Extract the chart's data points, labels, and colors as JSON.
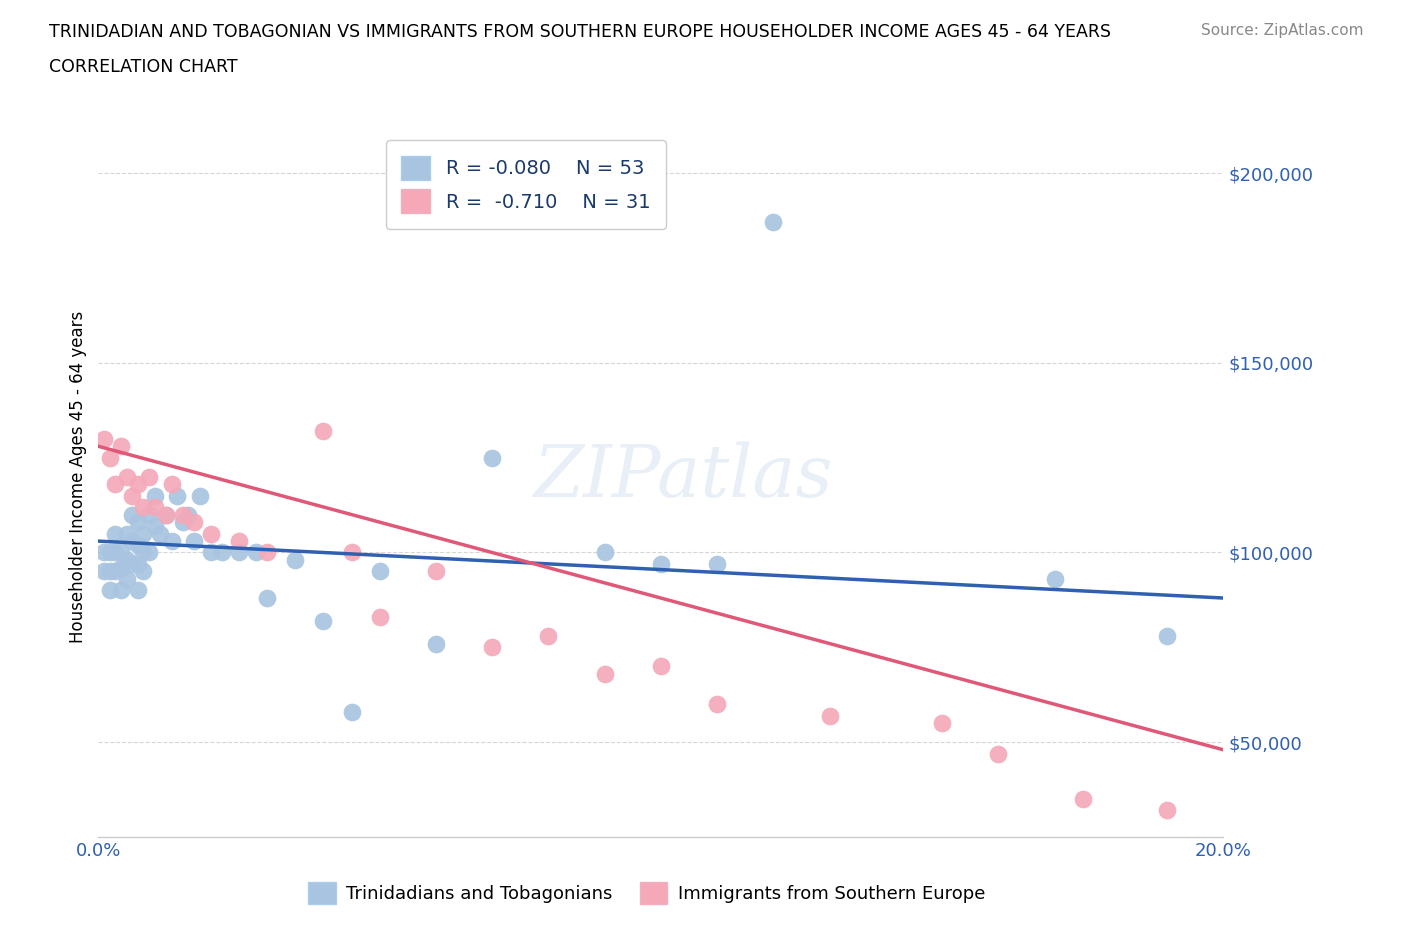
{
  "title_line1": "TRINIDADIAN AND TOBAGONIAN VS IMMIGRANTS FROM SOUTHERN EUROPE HOUSEHOLDER INCOME AGES 45 - 64 YEARS",
  "title_line2": "CORRELATION CHART",
  "source": "Source: ZipAtlas.com",
  "ylabel": "Householder Income Ages 45 - 64 years",
  "xlim": [
    0.0,
    0.2
  ],
  "ylim": [
    25000,
    215000
  ],
  "yticks": [
    50000,
    100000,
    150000,
    200000
  ],
  "ytick_labels": [
    "$50,000",
    "$100,000",
    "$150,000",
    "$200,000"
  ],
  "xticks": [
    0.0,
    0.025,
    0.05,
    0.075,
    0.1,
    0.125,
    0.15,
    0.175,
    0.2
  ],
  "xtick_labels": [
    "0.0%",
    "",
    "",
    "",
    "",
    "",
    "",
    "",
    "20.0%"
  ],
  "blue_R": -0.08,
  "blue_N": 53,
  "pink_R": -0.71,
  "pink_N": 31,
  "blue_color": "#a8c4e0",
  "pink_color": "#f4a8b8",
  "blue_line_color": "#3060b0",
  "pink_line_color": "#e05878",
  "legend_label_blue": "Trinidadians and Tobagonians",
  "legend_label_pink": "Immigrants from Southern Europe",
  "blue_x": [
    0.001,
    0.001,
    0.002,
    0.002,
    0.002,
    0.003,
    0.003,
    0.003,
    0.004,
    0.004,
    0.004,
    0.005,
    0.005,
    0.005,
    0.006,
    0.006,
    0.006,
    0.007,
    0.007,
    0.007,
    0.007,
    0.008,
    0.008,
    0.008,
    0.009,
    0.009,
    0.01,
    0.01,
    0.011,
    0.012,
    0.013,
    0.014,
    0.015,
    0.016,
    0.017,
    0.018,
    0.02,
    0.022,
    0.025,
    0.028,
    0.03,
    0.035,
    0.04,
    0.045,
    0.05,
    0.06,
    0.07,
    0.09,
    0.1,
    0.11,
    0.12,
    0.17,
    0.19
  ],
  "blue_y": [
    100000,
    95000,
    100000,
    95000,
    90000,
    105000,
    100000,
    95000,
    100000,
    96000,
    90000,
    105000,
    98000,
    93000,
    110000,
    103000,
    97000,
    108000,
    102000,
    97000,
    90000,
    105000,
    100000,
    95000,
    110000,
    100000,
    115000,
    107000,
    105000,
    110000,
    103000,
    115000,
    108000,
    110000,
    103000,
    115000,
    100000,
    100000,
    100000,
    100000,
    88000,
    98000,
    82000,
    58000,
    95000,
    76000,
    125000,
    100000,
    97000,
    97000,
    187000,
    93000,
    78000
  ],
  "pink_x": [
    0.001,
    0.002,
    0.003,
    0.004,
    0.005,
    0.006,
    0.007,
    0.008,
    0.009,
    0.01,
    0.012,
    0.013,
    0.015,
    0.017,
    0.02,
    0.025,
    0.03,
    0.04,
    0.045,
    0.05,
    0.06,
    0.07,
    0.08,
    0.09,
    0.1,
    0.11,
    0.13,
    0.15,
    0.16,
    0.175,
    0.19
  ],
  "pink_y": [
    130000,
    125000,
    118000,
    128000,
    120000,
    115000,
    118000,
    112000,
    120000,
    112000,
    110000,
    118000,
    110000,
    108000,
    105000,
    103000,
    100000,
    132000,
    100000,
    83000,
    95000,
    75000,
    78000,
    68000,
    70000,
    60000,
    57000,
    55000,
    47000,
    35000,
    32000
  ]
}
